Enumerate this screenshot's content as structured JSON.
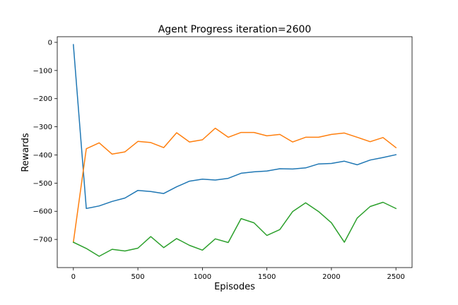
{
  "chart_data": {
    "type": "line",
    "title": "Agent Progress iteration=2600",
    "xlabel": "Episodes",
    "ylabel": "Rewards",
    "xlim": [
      -125,
      2625
    ],
    "ylim": [
      -800,
      20
    ],
    "xticks": [
      0,
      500,
      1000,
      1500,
      2000,
      2500
    ],
    "yticks": [
      0,
      -100,
      -200,
      -300,
      -400,
      -500,
      -600,
      -700
    ],
    "xtick_labels": [
      "0",
      "500",
      "1000",
      "1500",
      "2000",
      "2500"
    ],
    "ytick_labels": [
      "0",
      "−100",
      "−200",
      "−300",
      "−400",
      "−500",
      "−600",
      "−700"
    ],
    "grid": false,
    "x": [
      0,
      100,
      200,
      300,
      400,
      500,
      600,
      700,
      800,
      900,
      1000,
      1100,
      1200,
      1300,
      1400,
      1500,
      1600,
      1700,
      1800,
      1900,
      2000,
      2100,
      2200,
      2300,
      2400,
      2500
    ],
    "series": [
      {
        "color": "#1f77b4",
        "values": [
          -8,
          -590,
          -581,
          -565,
          -553,
          -526,
          -530,
          -537,
          -513,
          -493,
          -486,
          -489,
          -483,
          -465,
          -460,
          -457,
          -449,
          -450,
          -446,
          -432,
          -430,
          -422,
          -435,
          -418,
          -409,
          -399
        ]
      },
      {
        "color": "#ff7f0e",
        "values": [
          -710,
          -378,
          -357,
          -397,
          -389,
          -352,
          -356,
          -374,
          -321,
          -354,
          -346,
          -305,
          -337,
          -320,
          -320,
          -332,
          -327,
          -354,
          -337,
          -337,
          -327,
          -322,
          -337,
          -353,
          -338,
          -374
        ]
      },
      {
        "color": "#2ca02c",
        "values": [
          -710,
          -732,
          -760,
          -735,
          -741,
          -731,
          -690,
          -729,
          -697,
          -721,
          -738,
          -698,
          -711,
          -626,
          -641,
          -686,
          -665,
          -601,
          -570,
          -601,
          -641,
          -710,
          -624,
          -583,
          -568,
          -590
        ]
      }
    ]
  }
}
